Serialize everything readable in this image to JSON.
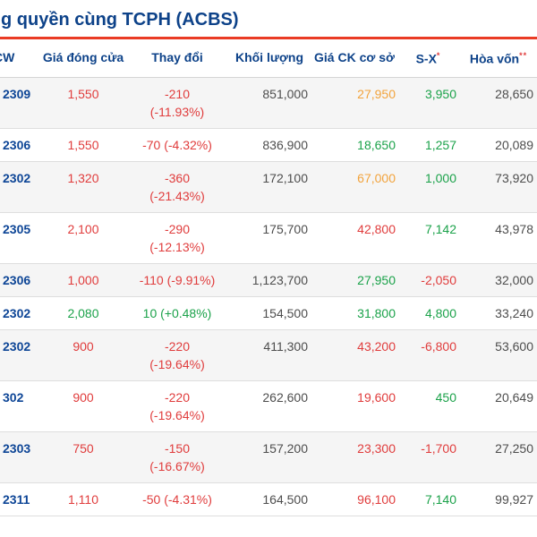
{
  "title": "g quyền cùng TCPH (ACBS)",
  "colors": {
    "accent_line": "#ea3b24",
    "heading_navy": "#0d4289",
    "value_red": "#e03c3c",
    "value_green": "#1ba24a",
    "value_orange": "#f2a33c",
    "value_dark": "#4d4d4d",
    "alt_row_bg": "#f5f5f5"
  },
  "table": {
    "headers": [
      {
        "label": "CW",
        "sup": ""
      },
      {
        "label": "Giá đóng cửa",
        "sup": ""
      },
      {
        "label": "Thay đổi",
        "sup": ""
      },
      {
        "label": "Khối lượng",
        "sup": ""
      },
      {
        "label": "Giá CK cơ sở",
        "sup": ""
      },
      {
        "label": "S-X",
        "sup": "*"
      },
      {
        "label": "Hòa vốn",
        "sup": "**"
      }
    ],
    "rows": [
      {
        "code": "2309",
        "close": {
          "text": "1,550",
          "color": "red"
        },
        "change": {
          "lines": [
            "-210",
            "(-11.93%)"
          ],
          "color": "red"
        },
        "volume": "851,000",
        "underlying": {
          "text": "27,950",
          "color": "orange"
        },
        "sx": {
          "text": "3,950",
          "color": "green"
        },
        "breakeven": "28,650"
      },
      {
        "code": "2306",
        "close": {
          "text": "1,550",
          "color": "red"
        },
        "change": {
          "lines": [
            "-70 (-4.32%)"
          ],
          "color": "red"
        },
        "volume": "836,900",
        "underlying": {
          "text": "18,650",
          "color": "green"
        },
        "sx": {
          "text": "1,257",
          "color": "green"
        },
        "breakeven": "20,089"
      },
      {
        "code": "2302",
        "close": {
          "text": "1,320",
          "color": "red"
        },
        "change": {
          "lines": [
            "-360",
            "(-21.43%)"
          ],
          "color": "red"
        },
        "volume": "172,100",
        "underlying": {
          "text": "67,000",
          "color": "orange"
        },
        "sx": {
          "text": "1,000",
          "color": "green"
        },
        "breakeven": "73,920"
      },
      {
        "code": "2305",
        "close": {
          "text": "2,100",
          "color": "red"
        },
        "change": {
          "lines": [
            "-290",
            "(-12.13%)"
          ],
          "color": "red"
        },
        "volume": "175,700",
        "underlying": {
          "text": "42,800",
          "color": "red"
        },
        "sx": {
          "text": "7,142",
          "color": "green"
        },
        "breakeven": "43,978"
      },
      {
        "code": "2306",
        "close": {
          "text": "1,000",
          "color": "red"
        },
        "change": {
          "lines": [
            "-110 (-9.91%)"
          ],
          "color": "red"
        },
        "volume": "1,123,700",
        "underlying": {
          "text": "27,950",
          "color": "green"
        },
        "sx": {
          "text": "-2,050",
          "color": "red"
        },
        "breakeven": "32,000"
      },
      {
        "code": "2302",
        "close": {
          "text": "2,080",
          "color": "green"
        },
        "change": {
          "lines": [
            "10 (+0.48%)"
          ],
          "color": "green"
        },
        "volume": "154,500",
        "underlying": {
          "text": "31,800",
          "color": "green"
        },
        "sx": {
          "text": "4,800",
          "color": "green"
        },
        "breakeven": "33,240"
      },
      {
        "code": "2302",
        "close": {
          "text": "900",
          "color": "red"
        },
        "change": {
          "lines": [
            "-220",
            "(-19.64%)"
          ],
          "color": "red"
        },
        "volume": "411,300",
        "underlying": {
          "text": "43,200",
          "color": "red"
        },
        "sx": {
          "text": "-6,800",
          "color": "red"
        },
        "breakeven": "53,600"
      },
      {
        "code": "302",
        "close": {
          "text": "900",
          "color": "red"
        },
        "change": {
          "lines": [
            "-220",
            "(-19.64%)"
          ],
          "color": "red"
        },
        "volume": "262,600",
        "underlying": {
          "text": "19,600",
          "color": "red"
        },
        "sx": {
          "text": "450",
          "color": "green"
        },
        "breakeven": "20,649"
      },
      {
        "code": "2303",
        "close": {
          "text": "750",
          "color": "red"
        },
        "change": {
          "lines": [
            "-150",
            "(-16.67%)"
          ],
          "color": "red"
        },
        "volume": "157,200",
        "underlying": {
          "text": "23,300",
          "color": "red"
        },
        "sx": {
          "text": "-1,700",
          "color": "red"
        },
        "breakeven": "27,250"
      },
      {
        "code": "2311",
        "close": {
          "text": "1,110",
          "color": "red"
        },
        "change": {
          "lines": [
            "-50 (-4.31%)"
          ],
          "color": "red"
        },
        "volume": "164,500",
        "underlying": {
          "text": "96,100",
          "color": "red"
        },
        "sx": {
          "text": "7,140",
          "color": "green"
        },
        "breakeven": "99,927"
      }
    ]
  }
}
